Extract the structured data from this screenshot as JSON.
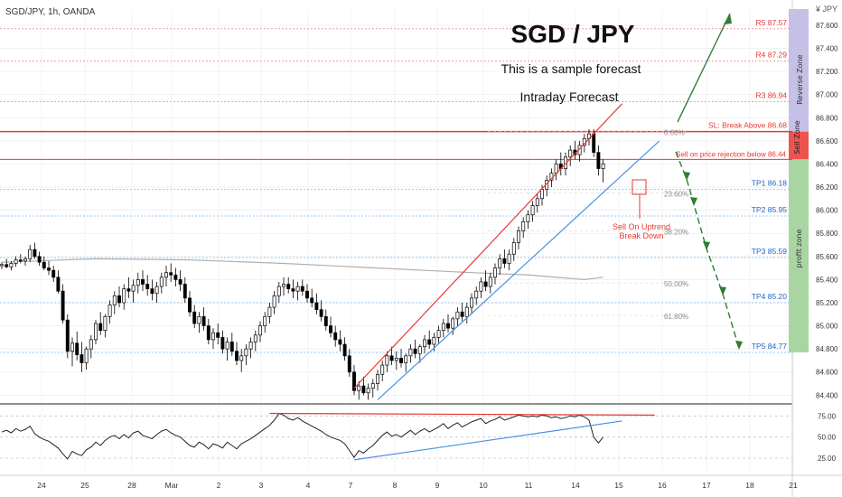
{
  "header": {
    "symbol_label": "SGD/JPY, 1h, OANDA",
    "currency_badge": "¥ JPY"
  },
  "annotations": {
    "title": "SGD / JPY",
    "subtitle": "This is a sample forecast",
    "subtitle2": "Intraday Forecast",
    "sell_note_line1": "Sell On Uptrend",
    "sell_note_line2": "Break Down"
  },
  "zones": {
    "reverse": "Reverse Zone",
    "sell": "Sell Zone",
    "profit": "profit zone"
  },
  "colors": {
    "red": "#e53935",
    "blue": "#2962ff",
    "green": "#1b5e20",
    "reverse_zone": "#c5c0e6",
    "sell_zone": "#ef5350",
    "profit_zone": "#a8d5a2",
    "candle": "#000000",
    "ma": "#b0b0b0"
  },
  "chart_data": {
    "type": "candlestick",
    "title": "SGD / JPY",
    "price_axis": {
      "ticks": [
        84.4,
        84.6,
        84.8,
        85.0,
        85.2,
        85.4,
        85.6,
        85.8,
        86.0,
        86.2,
        86.4,
        86.6,
        86.8,
        87.0,
        87.2,
        87.4,
        87.6
      ],
      "tick_labels": [
        "84.400",
        "84.600",
        "84.800",
        "85.000",
        "85.200",
        "85.400",
        "85.600",
        "85.800",
        "86.000",
        "86.200",
        "86.400",
        "86.600",
        "86.800",
        "87.000",
        "87.200",
        "87.400",
        "87.600"
      ],
      "range": [
        84.34,
        87.74
      ]
    },
    "time_axis": {
      "labels": [
        "24",
        "25",
        "28",
        "Mar",
        "2",
        "3",
        "4",
        "7",
        "8",
        "9",
        "10",
        "11",
        "14",
        "15",
        "16",
        "17",
        "18",
        "21"
      ]
    },
    "levels": [
      {
        "label": "R5 87.57",
        "value": 87.57,
        "kind": "resistance"
      },
      {
        "label": "R4 87.29",
        "value": 87.29,
        "kind": "resistance"
      },
      {
        "label": "R3 86.94",
        "value": 86.94,
        "kind": "resistance"
      },
      {
        "label": "SL: Break Above 86.68",
        "value": 86.68,
        "kind": "stop"
      },
      {
        "label": "Sell on price rejection below 86.44",
        "value": 86.44,
        "kind": "entry"
      },
      {
        "label": "TP1 86.18",
        "value": 86.18,
        "kind": "target"
      },
      {
        "label": "TP2 85.95",
        "value": 85.95,
        "kind": "target"
      },
      {
        "label": "TP3 85.59",
        "value": 85.59,
        "kind": "target"
      },
      {
        "label": "TP4 85.20",
        "value": 85.2,
        "kind": "target"
      },
      {
        "label": "TP5 84.77",
        "value": 84.77,
        "kind": "target"
      }
    ],
    "fib_labels": [
      "0.00%",
      "23.60%",
      "38.20%",
      "50.00%",
      "61.80%"
    ],
    "fib_values": [
      86.68,
      86.15,
      85.82,
      85.37,
      85.09
    ],
    "rsi_axis": {
      "ticks": [
        25,
        50,
        75
      ],
      "tick_labels": [
        "25.00",
        "50.00",
        "75.00"
      ]
    },
    "candles": [
      [
        85.52,
        85.55,
        85.49,
        85.53
      ],
      [
        85.53,
        85.58,
        85.5,
        85.51
      ],
      [
        85.51,
        85.56,
        85.48,
        85.54
      ],
      [
        85.54,
        85.6,
        85.51,
        85.57
      ],
      [
        85.57,
        85.62,
        85.54,
        85.56
      ],
      [
        85.56,
        85.6,
        85.52,
        85.58
      ],
      [
        85.58,
        85.7,
        85.55,
        85.66
      ],
      [
        85.66,
        85.72,
        85.58,
        85.6
      ],
      [
        85.6,
        85.64,
        85.52,
        85.55
      ],
      [
        85.55,
        85.6,
        85.48,
        85.5
      ],
      [
        85.5,
        85.56,
        85.44,
        85.48
      ],
      [
        85.48,
        85.52,
        85.38,
        85.42
      ],
      [
        85.42,
        85.48,
        85.28,
        85.3
      ],
      [
        85.3,
        85.36,
        85.02,
        85.05
      ],
      [
        85.05,
        85.1,
        84.72,
        84.78
      ],
      [
        84.78,
        84.9,
        84.65,
        84.85
      ],
      [
        84.85,
        84.95,
        84.7,
        84.75
      ],
      [
        84.75,
        84.86,
        84.6,
        84.68
      ],
      [
        84.68,
        84.82,
        84.62,
        84.8
      ],
      [
        84.8,
        84.92,
        84.72,
        84.88
      ],
      [
        84.88,
        85.05,
        84.84,
        85.02
      ],
      [
        85.02,
        85.12,
        84.92,
        84.96
      ],
      [
        84.96,
        85.1,
        84.9,
        85.08
      ],
      [
        85.08,
        85.22,
        85.02,
        85.18
      ],
      [
        85.18,
        85.3,
        85.1,
        85.26
      ],
      [
        85.26,
        85.34,
        85.16,
        85.2
      ],
      [
        85.2,
        85.36,
        85.14,
        85.32
      ],
      [
        85.32,
        85.42,
        85.24,
        85.3
      ],
      [
        85.3,
        85.4,
        85.2,
        85.35
      ],
      [
        85.35,
        85.46,
        85.28,
        85.4
      ],
      [
        85.4,
        85.48,
        85.3,
        85.36
      ],
      [
        85.36,
        85.44,
        85.26,
        85.32
      ],
      [
        85.32,
        85.4,
        85.22,
        85.28
      ],
      [
        85.28,
        85.38,
        85.2,
        85.34
      ],
      [
        85.34,
        85.46,
        85.28,
        85.42
      ],
      [
        85.42,
        85.52,
        85.34,
        85.46
      ],
      [
        85.46,
        85.54,
        85.38,
        85.44
      ],
      [
        85.44,
        85.5,
        85.34,
        85.4
      ],
      [
        85.4,
        85.48,
        85.3,
        85.36
      ],
      [
        85.36,
        85.42,
        85.2,
        85.24
      ],
      [
        85.24,
        85.3,
        85.08,
        85.12
      ],
      [
        85.12,
        85.18,
        84.98,
        85.02
      ],
      [
        85.02,
        85.12,
        84.94,
        85.08
      ],
      [
        85.08,
        85.16,
        84.96,
        85.0
      ],
      [
        85.0,
        85.06,
        84.84,
        84.88
      ],
      [
        84.88,
        84.98,
        84.8,
        84.94
      ],
      [
        84.94,
        85.02,
        84.84,
        84.9
      ],
      [
        84.9,
        84.96,
        84.76,
        84.8
      ],
      [
        84.8,
        84.9,
        84.7,
        84.86
      ],
      [
        84.86,
        84.94,
        84.74,
        84.78
      ],
      [
        84.78,
        84.86,
        84.66,
        84.7
      ],
      [
        84.7,
        84.8,
        84.6,
        84.74
      ],
      [
        84.74,
        84.84,
        84.66,
        84.8
      ],
      [
        84.8,
        84.9,
        84.72,
        84.86
      ],
      [
        84.86,
        84.96,
        84.78,
        84.92
      ],
      [
        84.92,
        85.04,
        84.86,
        85.0
      ],
      [
        85.0,
        85.12,
        84.94,
        85.08
      ],
      [
        85.08,
        85.2,
        85.02,
        85.16
      ],
      [
        85.16,
        85.3,
        85.1,
        85.26
      ],
      [
        85.26,
        85.38,
        85.2,
        85.34
      ],
      [
        85.34,
        85.42,
        85.26,
        85.36
      ],
      [
        85.36,
        85.42,
        85.28,
        85.32
      ],
      [
        85.32,
        85.4,
        85.24,
        85.3
      ],
      [
        85.3,
        85.38,
        85.22,
        85.34
      ],
      [
        85.34,
        85.4,
        85.26,
        85.3
      ],
      [
        85.3,
        85.36,
        85.2,
        85.24
      ],
      [
        85.24,
        85.32,
        85.16,
        85.2
      ],
      [
        85.2,
        85.28,
        85.1,
        85.14
      ],
      [
        85.14,
        85.22,
        85.04,
        85.08
      ],
      [
        85.08,
        85.14,
        84.96,
        85.0
      ],
      [
        85.0,
        85.08,
        84.9,
        84.94
      ],
      [
        84.94,
        85.0,
        84.82,
        84.88
      ],
      [
        84.88,
        84.96,
        84.78,
        84.84
      ],
      [
        84.84,
        84.9,
        84.7,
        84.74
      ],
      [
        84.74,
        84.8,
        84.56,
        84.6
      ],
      [
        84.6,
        84.66,
        84.4,
        84.44
      ],
      [
        84.44,
        84.52,
        84.36,
        84.48
      ],
      [
        84.48,
        84.56,
        84.4,
        84.42
      ],
      [
        84.42,
        84.5,
        84.36,
        84.46
      ],
      [
        84.46,
        84.54,
        84.38,
        84.5
      ],
      [
        84.5,
        84.62,
        84.44,
        84.58
      ],
      [
        84.58,
        84.7,
        84.52,
        84.66
      ],
      [
        84.66,
        84.78,
        84.6,
        84.74
      ],
      [
        84.74,
        84.82,
        84.66,
        84.7
      ],
      [
        84.7,
        84.78,
        84.62,
        84.72
      ],
      [
        84.72,
        84.8,
        84.64,
        84.68
      ],
      [
        84.68,
        84.76,
        84.6,
        84.74
      ],
      [
        84.74,
        84.84,
        84.68,
        84.8
      ],
      [
        84.8,
        84.88,
        84.72,
        84.76
      ],
      [
        84.76,
        84.84,
        84.68,
        84.82
      ],
      [
        84.82,
        84.92,
        84.76,
        84.88
      ],
      [
        84.88,
        84.96,
        84.8,
        84.84
      ],
      [
        84.84,
        84.94,
        84.78,
        84.9
      ],
      [
        84.9,
        85.0,
        84.84,
        84.96
      ],
      [
        84.96,
        85.06,
        84.9,
        85.02
      ],
      [
        85.02,
        85.1,
        84.94,
        84.98
      ],
      [
        84.98,
        85.08,
        84.92,
        85.06
      ],
      [
        85.06,
        85.16,
        85.0,
        85.12
      ],
      [
        85.12,
        85.2,
        85.04,
        85.08
      ],
      [
        85.08,
        85.2,
        85.02,
        85.16
      ],
      [
        85.16,
        85.28,
        85.1,
        85.24
      ],
      [
        85.24,
        85.34,
        85.18,
        85.3
      ],
      [
        85.3,
        85.42,
        85.24,
        85.38
      ],
      [
        85.38,
        85.48,
        85.3,
        85.34
      ],
      [
        85.34,
        85.46,
        85.28,
        85.42
      ],
      [
        85.42,
        85.54,
        85.36,
        85.5
      ],
      [
        85.5,
        85.62,
        85.44,
        85.58
      ],
      [
        85.58,
        85.66,
        85.5,
        85.54
      ],
      [
        85.54,
        85.66,
        85.48,
        85.62
      ],
      [
        85.62,
        85.76,
        85.56,
        85.72
      ],
      [
        85.72,
        85.86,
        85.66,
        85.82
      ],
      [
        85.82,
        85.94,
        85.76,
        85.9
      ],
      [
        85.9,
        86.0,
        85.84,
        85.96
      ],
      [
        85.96,
        86.08,
        85.9,
        86.04
      ],
      [
        86.04,
        86.14,
        85.98,
        86.1
      ],
      [
        86.1,
        86.22,
        86.04,
        86.18
      ],
      [
        86.18,
        86.3,
        86.12,
        86.26
      ],
      [
        86.26,
        86.36,
        86.2,
        86.32
      ],
      [
        86.32,
        86.44,
        86.26,
        86.4
      ],
      [
        86.4,
        86.5,
        86.3,
        86.36
      ],
      [
        86.36,
        86.5,
        86.3,
        86.46
      ],
      [
        86.46,
        86.56,
        86.38,
        86.52
      ],
      [
        86.52,
        86.6,
        86.44,
        86.48
      ],
      [
        86.48,
        86.6,
        86.42,
        86.56
      ],
      [
        86.56,
        86.66,
        86.5,
        86.62
      ],
      [
        86.62,
        86.7,
        86.56,
        86.66
      ],
      [
        86.66,
        86.7,
        86.46,
        86.5
      ],
      [
        86.5,
        86.56,
        86.3,
        86.36
      ],
      [
        86.36,
        86.44,
        86.24,
        86.4
      ]
    ],
    "moving_average": [
      [
        0,
        85.55
      ],
      [
        20,
        85.58
      ],
      [
        40,
        85.57
      ],
      [
        60,
        85.54
      ],
      [
        80,
        85.5
      ],
      [
        100,
        85.46
      ],
      [
        112,
        85.44
      ],
      [
        124,
        85.4
      ],
      [
        128,
        85.42
      ]
    ],
    "rsi": [
      56,
      58,
      55,
      60,
      57,
      59,
      63,
      54,
      50,
      47,
      45,
      41,
      37,
      30,
      24,
      33,
      30,
      28,
      35,
      38,
      44,
      40,
      46,
      50,
      52,
      48,
      53,
      49,
      55,
      57,
      52,
      50,
      48,
      53,
      57,
      59,
      55,
      52,
      50,
      45,
      40,
      38,
      44,
      41,
      36,
      42,
      40,
      37,
      44,
      40,
      36,
      42,
      45,
      48,
      52,
      56,
      60,
      64,
      70,
      78,
      76,
      72,
      70,
      73,
      69,
      66,
      63,
      60,
      57,
      53,
      50,
      48,
      46,
      42,
      34,
      26,
      34,
      31,
      36,
      40,
      46,
      52,
      56,
      51,
      53,
      50,
      54,
      58,
      53,
      57,
      60,
      56,
      59,
      62,
      66,
      60,
      64,
      67,
      62,
      65,
      68,
      70,
      72,
      66,
      69,
      71,
      74,
      70,
      72,
      74,
      76,
      75,
      74,
      75,
      74,
      76,
      75,
      73,
      74,
      72,
      73,
      75,
      74,
      76,
      74,
      70,
      50,
      43,
      50
    ],
    "trend_channel": {
      "upper": {
        "from_index": 75,
        "from_value": 84.46,
        "to_index": 132,
        "to_value": 86.92
      },
      "lower": {
        "from_index": 80,
        "from_value": 84.36,
        "to_index": 140,
        "to_value": 86.6
      }
    },
    "rsi_lines": {
      "top": {
        "from_index": 57,
        "from_value": 78,
        "to_index": 139,
        "to_value": 76
      },
      "bottom": {
        "from_index": 75,
        "from_value": 23,
        "to_index": 132,
        "to_value": 69
      }
    }
  }
}
